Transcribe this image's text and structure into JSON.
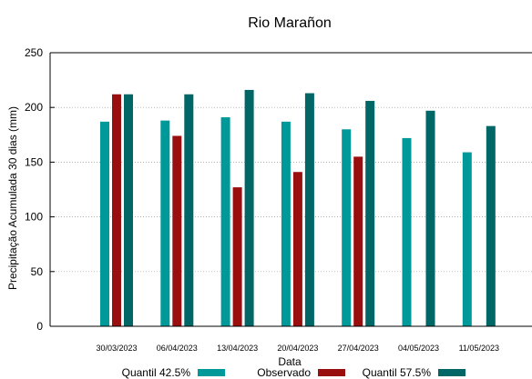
{
  "chart_data": {
    "type": "bar",
    "title": "Rio Marañon",
    "xlabel": "Data",
    "ylabel": "Precipitação Acumulada 30 dias (mm)",
    "ylim": [
      0,
      250
    ],
    "yticks": [
      0,
      50,
      100,
      150,
      200,
      250
    ],
    "grid": true,
    "legend_position": "bottom",
    "categories": [
      "30/03/2023",
      "06/04/2023",
      "13/04/2023",
      "20/04/2023",
      "27/04/2023",
      "04/05/2023",
      "11/05/2023"
    ],
    "series": [
      {
        "name": "Quantil 42.5%",
        "color": "#009999",
        "values": [
          187,
          188,
          191,
          187,
          180,
          172,
          159
        ]
      },
      {
        "name": "Observado",
        "color": "#990f0f",
        "values": [
          212,
          174,
          127,
          141,
          155,
          null,
          null
        ]
      },
      {
        "name": "Quantil 57.5%",
        "color": "#006666",
        "values": [
          212,
          212,
          216,
          213,
          206,
          197,
          183
        ]
      }
    ]
  }
}
